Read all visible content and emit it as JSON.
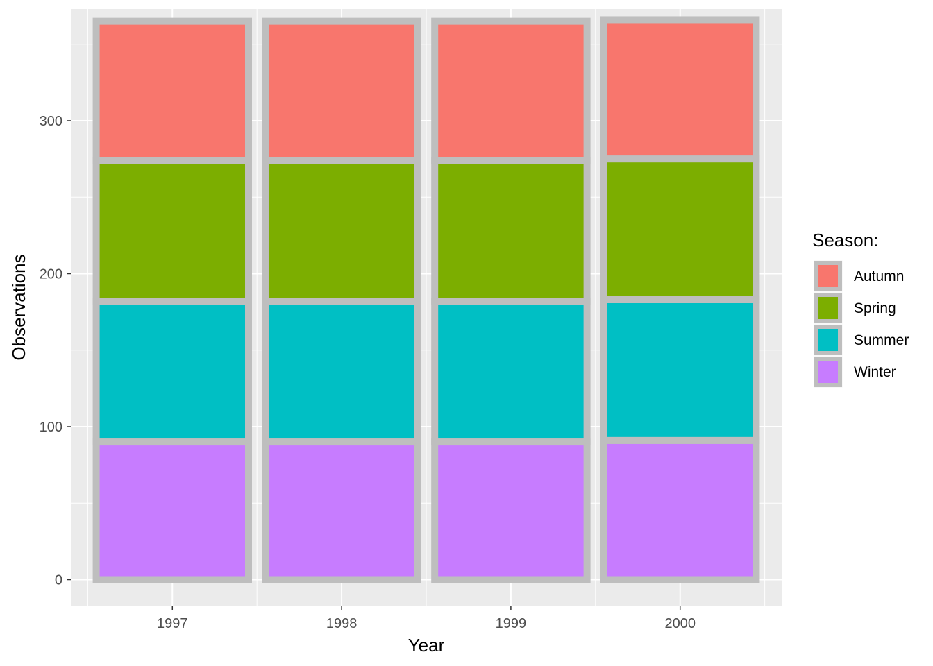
{
  "chart_data": {
    "type": "bar",
    "stacked": true,
    "categories": [
      "1997",
      "1998",
      "1999",
      "2000"
    ],
    "series": [
      {
        "name": "Winter",
        "values": [
          90,
          90,
          90,
          91
        ],
        "color": "#C77CFF"
      },
      {
        "name": "Summer",
        "values": [
          92,
          92,
          92,
          92
        ],
        "color": "#00BFC4"
      },
      {
        "name": "Spring",
        "values": [
          92,
          92,
          92,
          92
        ],
        "color": "#7CAE00"
      },
      {
        "name": "Autumn",
        "values": [
          91,
          91,
          91,
          91
        ],
        "color": "#F8766D"
      }
    ],
    "stack_order_bottom_to_top": [
      "Winter",
      "Summer",
      "Spring",
      "Autumn"
    ],
    "xlabel": "Year",
    "ylabel": "Observations",
    "y_ticks": [
      0,
      100,
      200,
      300
    ],
    "ylim": [
      -17,
      373
    ],
    "legend": {
      "title": "Season:",
      "placement": "right",
      "entries": [
        "Autumn",
        "Spring",
        "Summer",
        "Winter"
      ]
    },
    "bar_outline_color": "#BEBEBE",
    "panel_background": "#EBEBEB",
    "grid": true
  }
}
